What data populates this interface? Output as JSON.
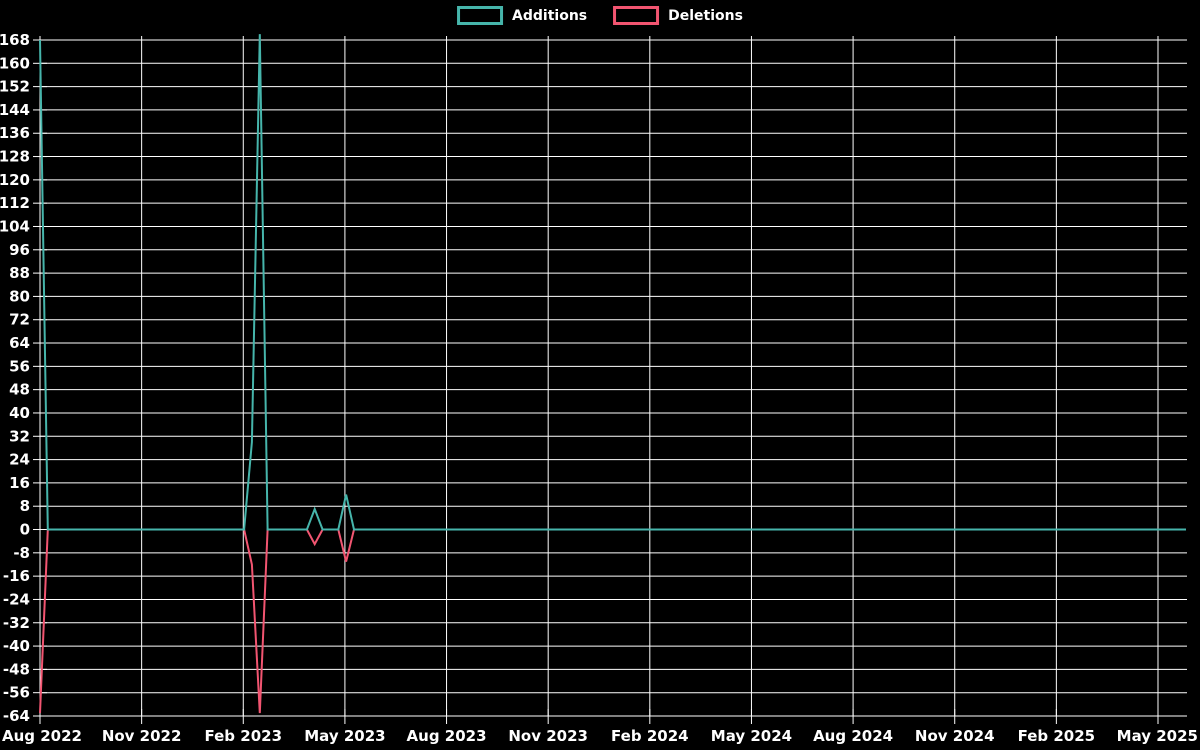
{
  "chart_data": {
    "type": "line",
    "title": "",
    "description": "Weekly additions and deletions code-frequency style chart on black background",
    "background_color": "#000000",
    "grid_color": "#ffffff",
    "text_color": "#ffffff",
    "grid": true,
    "legend": {
      "position": "top-center",
      "items": [
        {
          "label": "Additions",
          "color": "#46b5ab"
        },
        {
          "label": "Deletions",
          "color": "#f25571"
        }
      ]
    },
    "x_axis": {
      "tick_labels": [
        "Aug 2022",
        "Nov 2022",
        "Feb 2023",
        "May 2023",
        "Aug 2023",
        "Nov 2023",
        "Feb 2024",
        "May 2024",
        "Aug 2024",
        "Nov 2024",
        "Feb 2025",
        "May 2025"
      ]
    },
    "y_axis": {
      "min": -64,
      "max": 168,
      "step": 8,
      "tick_labels": [
        "168",
        "160",
        "152",
        "144",
        "136",
        "128",
        "120",
        "112",
        "104",
        "96",
        "88",
        "80",
        "72",
        "64",
        "56",
        "48",
        "40",
        "32",
        "24",
        "16",
        "8",
        "0",
        "-8",
        "-16",
        "-24",
        "-32",
        "-40",
        "-48",
        "-56",
        "-64"
      ]
    },
    "weeks_total": 147,
    "series": [
      {
        "name": "Additions",
        "color": "#46b5ab",
        "default_value": 0,
        "points": [
          {
            "week": 0,
            "value": 168
          },
          {
            "week": 1,
            "value": 0
          },
          {
            "week": 26,
            "value": 0
          },
          {
            "week": 27,
            "value": 30
          },
          {
            "week": 28,
            "value": 170
          },
          {
            "week": 29,
            "value": 0
          },
          {
            "week": 34,
            "value": 0
          },
          {
            "week": 35,
            "value": 7
          },
          {
            "week": 36,
            "value": 0
          },
          {
            "week": 38,
            "value": 0
          },
          {
            "week": 39,
            "value": 12
          },
          {
            "week": 40,
            "value": 0
          }
        ]
      },
      {
        "name": "Deletions",
        "color": "#f25571",
        "default_value": 0,
        "points": [
          {
            "week": 0,
            "value": -63
          },
          {
            "week": 1,
            "value": 0
          },
          {
            "week": 26,
            "value": 0
          },
          {
            "week": 27,
            "value": -12
          },
          {
            "week": 28,
            "value": -63
          },
          {
            "week": 29,
            "value": 0
          },
          {
            "week": 34,
            "value": 0
          },
          {
            "week": 35,
            "value": -5
          },
          {
            "week": 36,
            "value": 0
          },
          {
            "week": 38,
            "value": 0
          },
          {
            "week": 39,
            "value": -11
          },
          {
            "week": 40,
            "value": 0
          }
        ]
      }
    ]
  }
}
